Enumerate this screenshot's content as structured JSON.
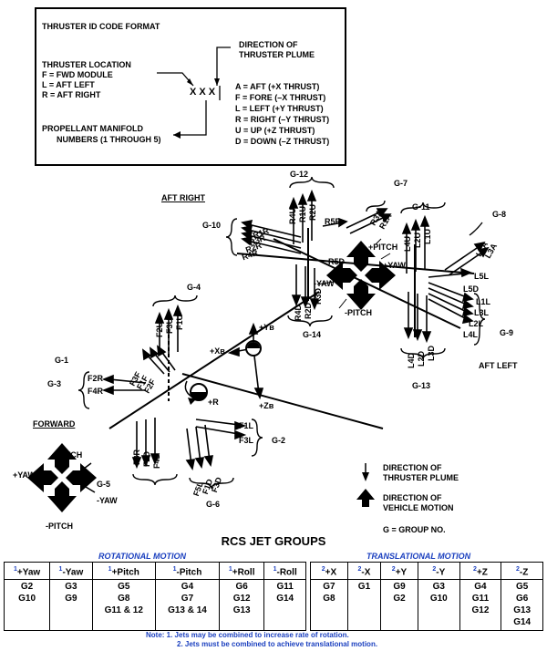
{
  "legend": {
    "heading": "THRUSTER ID CODE FORMAT",
    "location_title": "THRUSTER LOCATION",
    "locations": [
      "F = FWD MODULE",
      "L = AFT LEFT",
      "R = AFT RIGHT"
    ],
    "code_glyph": "X X X",
    "direction_title": "DIRECTION OF",
    "direction_title2": "THRUSTER PLUME",
    "directions": [
      "A = AFT  (+X THRUST)",
      "F = FORE (–X THRUST)",
      "L = LEFT  (+Y THRUST)",
      "R = RIGHT (–Y THRUST)",
      "U = UP (+Z THRUST)",
      "D = DOWN (–Z THRUST)"
    ],
    "manifold_title": "PROPELLANT MANIFOLD",
    "manifold_title2": "NUMBERS (1 THROUGH 5)"
  },
  "diagram": {
    "aft_right": "AFT RIGHT",
    "aft_left": "AFT LEFT",
    "forward": "FORWARD",
    "groups": {
      "g1": "G-1",
      "g2": "G-2",
      "g3": "G-3",
      "g4": "G-4",
      "g5": "G-5",
      "g6": "G-6",
      "g7": "G-7",
      "g8": "G-8",
      "g9": "G-9",
      "g10": "G-10",
      "g11": "G-11",
      "g12": "G-12",
      "g13": "G-13",
      "g14": "G-14"
    },
    "thrusters": {
      "r4u": "R4U",
      "r1u": "R1U",
      "r2u": "R2U",
      "r5r": "R5R",
      "r3a": "R3A",
      "r1a": "R1A",
      "r1r": "R1R",
      "r3r": "R3R",
      "r2r": "R2R",
      "r4r": "R4R",
      "r5d": "R5D",
      "r4d": "R4D",
      "r2d": "R2D",
      "r3d": "R3D",
      "l4u": "L4U",
      "l2u": "L2U",
      "l1u": "L1U",
      "l1a": "L1A",
      "l3a": "L3A",
      "l5l": "L5L",
      "l5d": "L5D",
      "l1l": "L1L",
      "l3l": "L3L",
      "l2l": "L2L",
      "l4l": "L4L",
      "l4d": "L4D",
      "l2d": "L2D",
      "l3d": "L3D",
      "f2u": "F2U",
      "f3u": "F3U",
      "f1u": "F1U",
      "f2r": "F2R",
      "f4r": "F4R",
      "f3f": "F3F",
      "f1f": "F1F",
      "f2f": "F2F",
      "f1l": "F1L",
      "f3l": "F3L",
      "f3r": "F3R",
      "f2d": "F2D",
      "f4d": "F4D",
      "f5l": "F5L",
      "f1d": "F1D",
      "f3d": "F3D"
    },
    "axes": {
      "yb": "+Yв",
      "xb": "+Xв",
      "zb": "+Zв",
      "r": "+R"
    },
    "motion": {
      "pitch_r": "+PITCH",
      "yaw_r": "+YAW",
      "nyaw_r": "-YAW",
      "npitch_r": "-PITCH",
      "pitch_f": "+PITCH",
      "yaw_f": "+YAW",
      "nyaw_f": "-YAW",
      "npitch_f": "-PITCH"
    },
    "key": {
      "plume": "DIRECTION OF",
      "plume2": "THRUSTER PLUME",
      "motion": "DIRECTION OF",
      "motion2": "VEHICLE MOTION",
      "group": "G = GROUP NO."
    }
  },
  "table": {
    "title": "RCS JET GROUPS",
    "rot_title": "ROTATIONAL MOTION",
    "trans_title": "TRANSLATIONAL MOTION",
    "rotational": [
      {
        "sup": "1",
        "head": "+Yaw",
        "groups": [
          "G2",
          "G10"
        ]
      },
      {
        "sup": "1",
        "head": "-Yaw",
        "groups": [
          "G3",
          "G9"
        ]
      },
      {
        "sup": "1",
        "head": "+Pitch",
        "groups": [
          "G5",
          "G8",
          "G11 & 12"
        ]
      },
      {
        "sup": "1",
        "head": "-Pitch",
        "groups": [
          "G4",
          "G7",
          "G13 & 14"
        ]
      },
      {
        "sup": "1",
        "head": "+Roll",
        "groups": [
          "G6",
          "G12",
          "G13"
        ]
      },
      {
        "sup": "1",
        "head": "-Roll",
        "groups": [
          "G11",
          "G14"
        ]
      }
    ],
    "translational": [
      {
        "sup": "2",
        "head": "+X",
        "groups": [
          "G7",
          "G8"
        ]
      },
      {
        "sup": "2",
        "head": "-X",
        "groups": [
          "G1"
        ]
      },
      {
        "sup": "2",
        "head": "+Y",
        "groups": [
          "G9",
          "G2"
        ]
      },
      {
        "sup": "2",
        "head": "-Y",
        "groups": [
          "G3",
          "G10"
        ]
      },
      {
        "sup": "2",
        "head": "+Z",
        "groups": [
          "G4",
          "G11",
          "G12"
        ]
      },
      {
        "sup": "2",
        "head": "-Z",
        "groups": [
          "G5",
          "G6",
          "G13",
          "G14"
        ]
      }
    ],
    "note1": "Note:  1. Jets may be combined to increase rate of rotation.",
    "note2": "2. Jets must be combined to achieve translational motion."
  }
}
